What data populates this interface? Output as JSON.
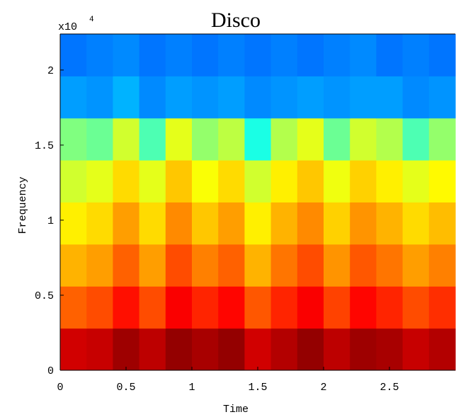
{
  "chart_data": {
    "type": "heatmap",
    "title": "Disco",
    "xlabel": "Time",
    "ylabel": "Frequency",
    "y_multiplier": {
      "base": "x10",
      "exponent": "4"
    },
    "xlim": [
      0,
      3
    ],
    "ylim": [
      0,
      2.24
    ],
    "xticks": [
      0,
      0.5,
      1,
      1.5,
      2,
      2.5
    ],
    "yticks": [
      0,
      0.5,
      1,
      1.5,
      2
    ],
    "xbins": [
      0,
      0.2,
      0.4,
      0.6,
      0.8,
      1.0,
      1.2,
      1.4,
      1.6,
      1.8,
      2.0,
      2.2,
      2.4,
      2.6,
      2.8,
      3.0
    ],
    "ybins": [
      0,
      0.28,
      0.56,
      0.84,
      1.12,
      1.4,
      1.68,
      1.96,
      2.24
    ],
    "colormap": "jet",
    "z": [
      [
        0.92,
        0.93,
        0.97,
        0.94,
        0.98,
        0.96,
        0.98,
        0.92,
        0.95,
        0.98,
        0.94,
        0.97,
        0.96,
        0.93,
        0.95
      ],
      [
        0.78,
        0.8,
        0.86,
        0.8,
        0.88,
        0.84,
        0.87,
        0.79,
        0.84,
        0.88,
        0.81,
        0.87,
        0.84,
        0.8,
        0.83
      ],
      [
        0.7,
        0.72,
        0.78,
        0.72,
        0.8,
        0.75,
        0.78,
        0.7,
        0.76,
        0.8,
        0.73,
        0.79,
        0.76,
        0.72,
        0.75
      ],
      [
        0.64,
        0.66,
        0.72,
        0.66,
        0.74,
        0.68,
        0.72,
        0.64,
        0.7,
        0.74,
        0.67,
        0.73,
        0.7,
        0.66,
        0.69
      ],
      [
        0.58,
        0.6,
        0.66,
        0.6,
        0.68,
        0.62,
        0.66,
        0.58,
        0.64,
        0.68,
        0.61,
        0.67,
        0.64,
        0.6,
        0.63
      ],
      [
        0.5,
        0.48,
        0.58,
        0.45,
        0.6,
        0.52,
        0.56,
        0.4,
        0.55,
        0.6,
        0.48,
        0.58,
        0.55,
        0.45,
        0.52
      ],
      [
        0.28,
        0.27,
        0.3,
        0.26,
        0.28,
        0.27,
        0.28,
        0.26,
        0.27,
        0.28,
        0.27,
        0.28,
        0.28,
        0.26,
        0.27
      ],
      [
        0.24,
        0.25,
        0.26,
        0.24,
        0.25,
        0.24,
        0.25,
        0.24,
        0.25,
        0.24,
        0.25,
        0.26,
        0.24,
        0.25,
        0.24
      ]
    ]
  }
}
